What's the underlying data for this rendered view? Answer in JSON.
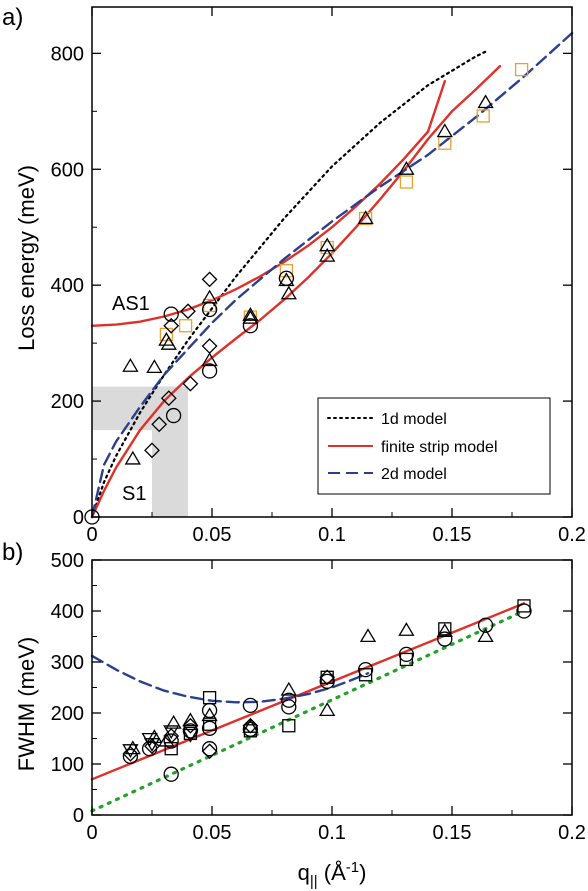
{
  "colors": {
    "finite_strip": "#e0302a",
    "model_2d": "#2b3f8f",
    "model_1d": "#000000",
    "green_dotted": "#22a22a",
    "squares_top": "#e8a030",
    "marker": "#000000",
    "shade": "#dadada"
  },
  "chart_data": [
    {
      "panel": "a)",
      "type": "scatter",
      "xlabel": "",
      "ylabel": "Loss energy (meV)",
      "xlim": [
        0,
        0.2
      ],
      "ylim": [
        0,
        880
      ],
      "xticks": [
        "0",
        "0.05",
        "0.1",
        "0.15",
        "0.2"
      ],
      "xtick_values": [
        0,
        0.05,
        0.1,
        0.15,
        0.2
      ],
      "yticks": [
        "0",
        "200",
        "400",
        "600",
        "800"
      ],
      "ytick_values": [
        0,
        200,
        400,
        600,
        800
      ],
      "annotations": [
        "AS1",
        "S1"
      ],
      "shaded_regions": [
        {
          "x": [
            0,
            0.04
          ],
          "y": [
            150,
            225
          ]
        },
        {
          "x": [
            0.025,
            0.04
          ],
          "y": [
            0,
            225
          ]
        }
      ],
      "legend": {
        "placement": "bottom-right",
        "entries": [
          {
            "label": "1d model",
            "style": "dotted",
            "color": "#000000"
          },
          {
            "label": "finite strip model",
            "style": "solid",
            "color": "#e0302a"
          },
          {
            "label": "2d model",
            "style": "dashed",
            "color": "#2b3f8f"
          }
        ]
      },
      "lines": [
        {
          "label": "1d model",
          "style": "dotted",
          "color": "#000000",
          "x": [
            0,
            0.005,
            0.01,
            0.02,
            0.03,
            0.04,
            0.06,
            0.08,
            0.1,
            0.12,
            0.14,
            0.16,
            0.165
          ],
          "y": [
            0,
            60,
            105,
            180,
            245,
            305,
            415,
            515,
            605,
            680,
            745,
            795,
            805
          ]
        },
        {
          "label": "finite strip AS1",
          "style": "solid",
          "color": "#e0302a",
          "x": [
            0,
            0.01,
            0.02,
            0.03,
            0.04,
            0.05,
            0.06,
            0.07,
            0.08,
            0.09,
            0.1,
            0.11,
            0.12,
            0.13,
            0.14,
            0.147
          ],
          "y": [
            330,
            332,
            337,
            346,
            358,
            374,
            393,
            415,
            440,
            468,
            500,
            536,
            575,
            618,
            665,
            752
          ]
        },
        {
          "label": "finite strip S1",
          "style": "solid",
          "color": "#e0302a",
          "x": [
            0,
            0.005,
            0.01,
            0.02,
            0.03,
            0.04,
            0.05,
            0.06,
            0.07,
            0.08,
            0.09,
            0.1,
            0.11,
            0.12,
            0.13,
            0.14,
            0.15,
            0.16,
            0.17
          ],
          "y": [
            0,
            45,
            85,
            150,
            200,
            240,
            275,
            308,
            340,
            375,
            413,
            455,
            500,
            548,
            598,
            652,
            700,
            738,
            778
          ]
        },
        {
          "label": "2d model",
          "style": "dashed",
          "color": "#2b3f8f",
          "x": [
            0,
            0.005,
            0.01,
            0.02,
            0.03,
            0.04,
            0.05,
            0.06,
            0.08,
            0.1,
            0.12,
            0.14,
            0.16,
            0.18,
            0.2
          ],
          "y": [
            0,
            90,
            130,
            190,
            245,
            290,
            335,
            375,
            445,
            510,
            570,
            625,
            690,
            760,
            835
          ]
        }
      ],
      "markers": [
        {
          "shape": "square",
          "color": "#e8a030",
          "x": [
            0.031,
            0.039,
            0.049,
            0.066,
            0.081,
            0.098,
            0.114,
            0.131,
            0.147,
            0.163,
            0.179
          ],
          "y": [
            315,
            330,
            365,
            345,
            425,
            465,
            515,
            578,
            645,
            692,
            772
          ]
        },
        {
          "shape": "triangle",
          "color": "#000000",
          "x": [
            0.016,
            0.017,
            0.026,
            0.031,
            0.032,
            0.049,
            0.049,
            0.066,
            0.066,
            0.081,
            0.082,
            0.098,
            0.098,
            0.114,
            0.131,
            0.147,
            0.164
          ],
          "y": [
            260,
            100,
            258,
            305,
            298,
            270,
            378,
            348,
            343,
            408,
            385,
            468,
            450,
            515,
            600,
            665,
            715
          ]
        },
        {
          "shape": "diamond",
          "color": "#000000",
          "x": [
            0.025,
            0.028,
            0.032,
            0.033,
            0.04,
            0.041,
            0.049,
            0.049
          ],
          "y": [
            115,
            160,
            205,
            330,
            355,
            230,
            410,
            295
          ]
        },
        {
          "shape": "circle",
          "color": "#000000",
          "x": [
            0.0,
            0.033,
            0.034,
            0.049,
            0.049,
            0.066,
            0.081
          ],
          "y": [
            0,
            350,
            175,
            358,
            252,
            330,
            412
          ]
        }
      ]
    },
    {
      "panel": "b)",
      "type": "scatter",
      "xlabel": "q|| (Å-1)",
      "ylabel": "FWHM (meV)",
      "xlim": [
        0,
        0.2
      ],
      "ylim": [
        0,
        500
      ],
      "xticks": [
        "0",
        "0.05",
        "0.1",
        "0.15",
        "0.2"
      ],
      "xtick_values": [
        0,
        0.05,
        0.1,
        0.15,
        0.2
      ],
      "yticks": [
        "0",
        "100",
        "200",
        "300",
        "400",
        "500"
      ],
      "ytick_values": [
        0,
        100,
        200,
        300,
        400,
        500
      ],
      "lines": [
        {
          "label": "finite strip model",
          "style": "solid",
          "color": "#e0302a",
          "x": [
            0,
            0.18
          ],
          "y": [
            70,
            415
          ]
        },
        {
          "label": "2d model",
          "style": "dashed",
          "color": "#2b3f8f",
          "x": [
            0,
            0.01,
            0.02,
            0.03,
            0.04,
            0.05,
            0.06,
            0.07,
            0.08,
            0.09,
            0.1,
            0.11,
            0.115
          ],
          "y": [
            312,
            285,
            262,
            244,
            232,
            224,
            221,
            222,
            228,
            237,
            250,
            268,
            278
          ]
        },
        {
          "label": "green dotted",
          "style": "dotted",
          "color": "#22a22a",
          "x": [
            0,
            0.18
          ],
          "y": [
            8,
            400
          ]
        }
      ],
      "markers": [
        {
          "shape": "circle",
          "x": [
            0.016,
            0.024,
            0.033,
            0.033,
            0.041,
            0.049,
            0.049,
            0.049,
            0.066,
            0.066,
            0.082,
            0.082,
            0.098,
            0.114,
            0.131,
            0.147,
            0.164,
            0.18
          ],
          "y": [
            115,
            130,
            145,
            80,
            165,
            205,
            170,
            130,
            215,
            168,
            225,
            212,
            262,
            285,
            315,
            345,
            372,
            400
          ]
        },
        {
          "shape": "triangle",
          "x": [
            0.017,
            0.026,
            0.031,
            0.034,
            0.041,
            0.049,
            0.066,
            0.082,
            0.098,
            0.115,
            0.131,
            0.147,
            0.164
          ],
          "y": [
            130,
            152,
            145,
            180,
            185,
            195,
            172,
            245,
            205,
            350,
            362,
            360,
            350
          ]
        },
        {
          "shape": "inverted-triangle",
          "x": [
            0.016,
            0.024,
            0.025,
            0.033,
            0.041
          ],
          "y": [
            128,
            150,
            140,
            165,
            158
          ]
        },
        {
          "shape": "square",
          "x": [
            0.033,
            0.041,
            0.049,
            0.049,
            0.066,
            0.082,
            0.098,
            0.114,
            0.131,
            0.147,
            0.18
          ],
          "y": [
            130,
            160,
            230,
            178,
            165,
            175,
            270,
            275,
            305,
            365,
            410
          ]
        },
        {
          "shape": "diamond",
          "x": [
            0.016,
            0.025,
            0.033,
            0.041,
            0.049,
            0.066,
            0.098
          ],
          "y": [
            120,
            135,
            155,
            175,
            125,
            175,
            270
          ]
        }
      ]
    }
  ]
}
